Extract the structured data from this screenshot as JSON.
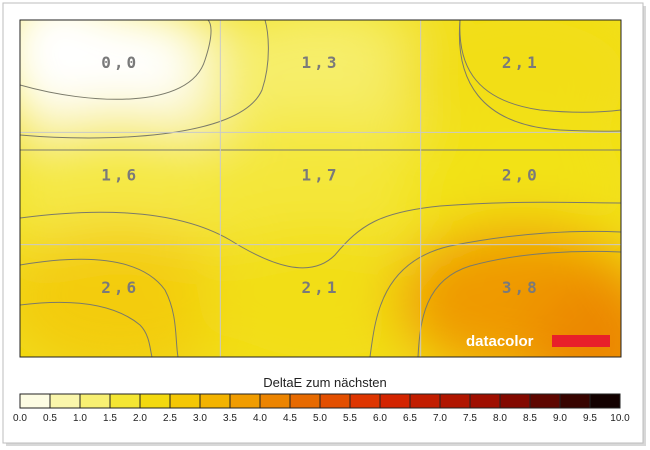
{
  "chart_data": {
    "type": "heatmap",
    "grid": {
      "rows": 3,
      "cols": 3
    },
    "cells": [
      [
        "0,0",
        "1,3",
        "2,1"
      ],
      [
        "1,6",
        "1,7",
        "2,0"
      ],
      [
        "2,6",
        "2,1",
        "3,8"
      ]
    ],
    "values": [
      [
        0.0,
        1.3,
        2.1
      ],
      [
        1.6,
        1.7,
        2.0
      ],
      [
        2.6,
        2.1,
        3.8
      ]
    ],
    "colorbar": {
      "title": "DeltaE zum nächsten",
      "ticks": [
        "0.0",
        "0.5",
        "1.0",
        "1.5",
        "2.0",
        "2.5",
        "3.0",
        "3.5",
        "4.0",
        "4.5",
        "5.0",
        "5.5",
        "6.0",
        "6.5",
        "7.0",
        "7.5",
        "8.0",
        "8.5",
        "9.0",
        "9.5",
        "10.0"
      ],
      "range": [
        0,
        10
      ]
    },
    "contours": true,
    "grid_lines": true
  },
  "brand": {
    "name": "datacolor",
    "color": "#e8202a"
  },
  "colors": {
    "white": "#ffffff",
    "yellow": "#f2e20f",
    "orange": "#ef9a00",
    "red": "#d81e05",
    "black": "#000000"
  }
}
